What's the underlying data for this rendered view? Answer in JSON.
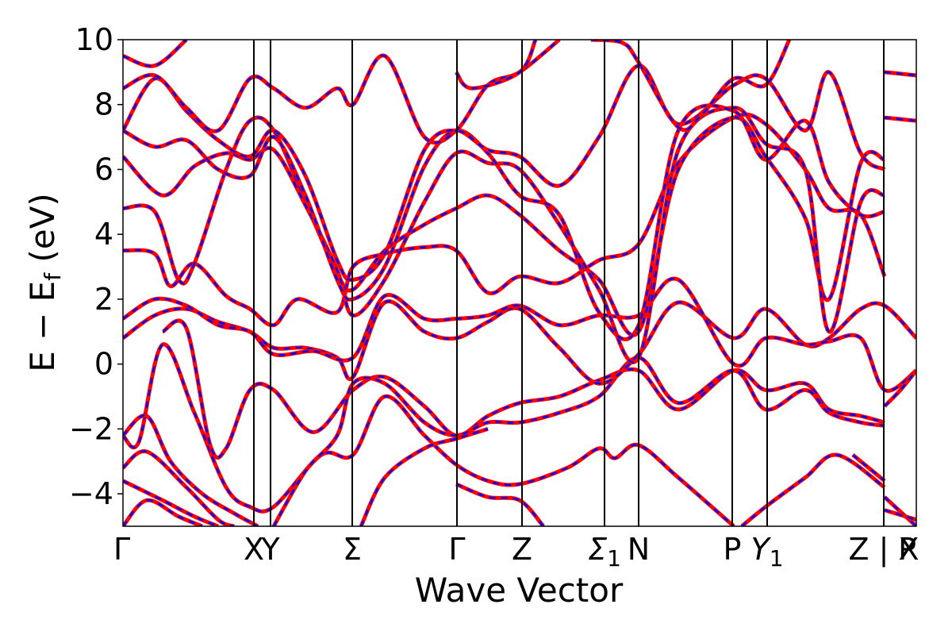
{
  "chart_data": {
    "type": "line",
    "title": "",
    "xlabel": "Wave Vector",
    "ylabel": "E − E",
    "ylabel_sub": "f",
    "ylabel_unit": " (eV)",
    "ylim": [
      -5,
      10
    ],
    "yticks": [
      -4,
      -2,
      0,
      2,
      4,
      6,
      8,
      10
    ],
    "ytick_labels": [
      "−4",
      "−2",
      "0",
      "2",
      "4",
      "6",
      "8",
      "10"
    ],
    "xlim": [
      0,
      1
    ],
    "kpoints": [
      {
        "label": "Γ",
        "sub": "",
        "x": 0.0,
        "line": false
      },
      {
        "label": "X",
        "sub": "",
        "x": 0.165,
        "line": true
      },
      {
        "label": "Y",
        "sub": "",
        "x": 0.186,
        "line": true
      },
      {
        "label": "Σ",
        "sub": "",
        "x": 0.289,
        "line": true
      },
      {
        "label": "Γ",
        "sub": "",
        "x": 0.421,
        "line": true
      },
      {
        "label": "Z",
        "sub": "",
        "x": 0.503,
        "line": true
      },
      {
        "label": "Σ",
        "sub": "1",
        "x": 0.607,
        "line": true
      },
      {
        "label": "N",
        "sub": "",
        "x": 0.65,
        "line": true
      },
      {
        "label": "P",
        "sub": "",
        "x": 0.768,
        "line": true
      },
      {
        "label": "Y",
        "sub": "1",
        "x": 0.812,
        "line": true
      },
      {
        "label": "Z | X",
        "sub": "",
        "x": 0.959,
        "line": true
      },
      {
        "label": "P",
        "sub": "",
        "x": 1.0,
        "line": false
      }
    ],
    "series": [
      {
        "color": "#ff0000",
        "style": "solid"
      },
      {
        "color": "#0000ff",
        "style": "dashed"
      }
    ],
    "bands": [
      [
        [
          0.0,
          -5.0
        ],
        [
          0.03,
          -4.2
        ],
        [
          0.07,
          -4.7
        ],
        [
          0.1,
          -5.0
        ]
      ],
      [
        [
          0.0,
          -3.6
        ],
        [
          0.05,
          -4.2
        ],
        [
          0.09,
          -4.7
        ],
        [
          0.12,
          -5.0
        ]
      ],
      [
        [
          0.0,
          -3.2
        ],
        [
          0.03,
          -2.7
        ],
        [
          0.08,
          -3.8
        ],
        [
          0.12,
          -4.8
        ],
        [
          0.14,
          -5.0
        ]
      ],
      [
        [
          0.0,
          -2.2
        ],
        [
          0.02,
          -2.4
        ],
        [
          0.05,
          0.6
        ],
        [
          0.09,
          -1.5
        ],
        [
          0.13,
          -3.8
        ],
        [
          0.16,
          -4.4
        ],
        [
          0.19,
          -4.4
        ],
        [
          0.25,
          -2.8
        ],
        [
          0.29,
          -2.8
        ],
        [
          0.33,
          -1.0
        ],
        [
          0.38,
          -2.2
        ],
        [
          0.42,
          -3.1
        ],
        [
          0.46,
          -3.6
        ],
        [
          0.5,
          -3.7
        ],
        [
          0.56,
          -3.2
        ],
        [
          0.6,
          -2.6
        ],
        [
          0.62,
          -2.9
        ],
        [
          0.65,
          -2.5
        ],
        [
          0.7,
          -3.5
        ],
        [
          0.77,
          -5.0
        ]
      ],
      [
        [
          0.0,
          -2.2
        ],
        [
          0.03,
          -1.6
        ],
        [
          0.06,
          -3.0
        ],
        [
          0.1,
          -4.0
        ],
        [
          0.14,
          -4.6
        ],
        [
          0.17,
          -5.0
        ]
      ],
      [
        [
          0.05,
          1.0
        ],
        [
          0.08,
          1.1
        ],
        [
          0.11,
          -2.5
        ],
        [
          0.13,
          -2.6
        ],
        [
          0.16,
          -0.8
        ],
        [
          0.19,
          -0.8
        ],
        [
          0.24,
          -2.1
        ],
        [
          0.29,
          -0.8
        ],
        [
          0.33,
          -0.4
        ],
        [
          0.38,
          -1.3
        ],
        [
          0.42,
          -2.2
        ],
        [
          0.46,
          -1.6
        ],
        [
          0.5,
          -1.2
        ],
        [
          0.55,
          -1.0
        ],
        [
          0.6,
          -0.5
        ],
        [
          0.65,
          -0.2
        ],
        [
          0.7,
          -1.4
        ],
        [
          0.77,
          -0.2
        ],
        [
          0.81,
          -0.8
        ],
        [
          0.86,
          -0.6
        ],
        [
          0.89,
          -1.4
        ],
        [
          0.93,
          -1.6
        ],
        [
          0.96,
          -1.8
        ]
      ],
      [
        [
          0.19,
          -5.0
        ],
        [
          0.23,
          -3.3
        ],
        [
          0.27,
          -2.2
        ],
        [
          0.29,
          -0.6
        ],
        [
          0.33,
          -0.6
        ],
        [
          0.38,
          -1.8
        ],
        [
          0.42,
          -2.2
        ],
        [
          0.46,
          -1.8
        ],
        [
          0.5,
          -1.8
        ],
        [
          0.55,
          -1.5
        ],
        [
          0.6,
          -1.0
        ],
        [
          0.65,
          0.2
        ],
        [
          0.7,
          -1.2
        ],
        [
          0.77,
          -0.2
        ],
        [
          0.81,
          -1.4
        ],
        [
          0.86,
          -0.8
        ],
        [
          0.89,
          -1.5
        ],
        [
          0.93,
          -1.8
        ],
        [
          0.96,
          -1.9
        ]
      ],
      [
        [
          0.0,
          0.8
        ],
        [
          0.04,
          1.5
        ],
        [
          0.08,
          1.7
        ],
        [
          0.12,
          1.3
        ],
        [
          0.16,
          1.0
        ],
        [
          0.19,
          0.5
        ],
        [
          0.23,
          0.5
        ],
        [
          0.27,
          0.2
        ],
        [
          0.29,
          -0.4
        ],
        [
          0.33,
          1.9
        ],
        [
          0.38,
          1.0
        ],
        [
          0.42,
          0.8
        ],
        [
          0.46,
          1.3
        ],
        [
          0.5,
          1.7
        ],
        [
          0.55,
          0.5
        ],
        [
          0.6,
          -0.6
        ],
        [
          0.65,
          0.3
        ],
        [
          0.7,
          1.9
        ],
        [
          0.77,
          0.8
        ],
        [
          0.81,
          1.7
        ],
        [
          0.86,
          0.6
        ],
        [
          0.89,
          0.8
        ],
        [
          0.93,
          1.7
        ],
        [
          0.96,
          1.8
        ],
        [
          1.0,
          0.8
        ]
      ],
      [
        [
          0.0,
          1.4
        ],
        [
          0.04,
          2.0
        ],
        [
          0.08,
          1.8
        ],
        [
          0.12,
          1.2
        ],
        [
          0.16,
          1.0
        ],
        [
          0.19,
          0.3
        ],
        [
          0.24,
          0.4
        ],
        [
          0.29,
          0.2
        ],
        [
          0.33,
          2.1
        ],
        [
          0.38,
          1.4
        ],
        [
          0.42,
          1.4
        ],
        [
          0.46,
          1.5
        ],
        [
          0.5,
          1.8
        ],
        [
          0.55,
          1.2
        ],
        [
          0.6,
          1.5
        ],
        [
          0.65,
          1.5
        ],
        [
          0.7,
          2.6
        ],
        [
          0.77,
          0.0
        ],
        [
          0.81,
          0.8
        ],
        [
          0.86,
          0.6
        ],
        [
          0.89,
          0.7
        ],
        [
          0.93,
          0.8
        ],
        [
          0.96,
          -0.8
        ],
        [
          1.0,
          -0.2
        ]
      ],
      [
        [
          0.0,
          3.5
        ],
        [
          0.04,
          3.4
        ],
        [
          0.06,
          2.4
        ],
        [
          0.09,
          3.1
        ],
        [
          0.13,
          2.1
        ],
        [
          0.16,
          1.7
        ],
        [
          0.19,
          1.2
        ],
        [
          0.22,
          2.0
        ],
        [
          0.27,
          1.6
        ],
        [
          0.29,
          3.0
        ],
        [
          0.33,
          3.4
        ],
        [
          0.38,
          3.6
        ],
        [
          0.42,
          3.5
        ],
        [
          0.46,
          2.2
        ],
        [
          0.5,
          2.7
        ],
        [
          0.55,
          2.5
        ],
        [
          0.6,
          3.2
        ],
        [
          0.65,
          3.7
        ],
        [
          0.7,
          6.2
        ],
        [
          0.77,
          7.6
        ],
        [
          0.81,
          7.4
        ],
        [
          0.86,
          6.0
        ],
        [
          0.89,
          4.8
        ],
        [
          0.93,
          4.6
        ],
        [
          0.96,
          2.7
        ]
      ],
      [
        [
          0.0,
          4.8
        ],
        [
          0.04,
          4.7
        ],
        [
          0.07,
          2.6
        ],
        [
          0.09,
          3.1
        ],
        [
          0.13,
          6.0
        ],
        [
          0.16,
          7.5
        ],
        [
          0.19,
          7.2
        ],
        [
          0.23,
          5.0
        ],
        [
          0.27,
          2.8
        ],
        [
          0.29,
          2.3
        ],
        [
          0.33,
          3.5
        ],
        [
          0.38,
          4.3
        ],
        [
          0.42,
          4.8
        ],
        [
          0.46,
          5.2
        ],
        [
          0.5,
          4.6
        ],
        [
          0.55,
          3.5
        ],
        [
          0.6,
          2.6
        ],
        [
          0.65,
          1.0
        ],
        [
          0.7,
          6.0
        ],
        [
          0.77,
          7.6
        ],
        [
          0.81,
          6.4
        ],
        [
          0.86,
          4.5
        ],
        [
          0.89,
          2.0
        ],
        [
          0.93,
          6.2
        ],
        [
          0.96,
          6.3
        ]
      ],
      [
        [
          0.0,
          6.4
        ],
        [
          0.05,
          5.2
        ],
        [
          0.09,
          6.1
        ],
        [
          0.13,
          6.5
        ],
        [
          0.16,
          6.3
        ],
        [
          0.19,
          6.6
        ],
        [
          0.23,
          4.9
        ],
        [
          0.27,
          2.9
        ],
        [
          0.29,
          1.5
        ],
        [
          0.33,
          2.6
        ],
        [
          0.38,
          5.0
        ],
        [
          0.42,
          6.5
        ],
        [
          0.46,
          6.2
        ],
        [
          0.5,
          6.0
        ],
        [
          0.55,
          4.3
        ],
        [
          0.6,
          2.3
        ],
        [
          0.65,
          0.2
        ],
        [
          0.7,
          6.6
        ],
        [
          0.77,
          7.9
        ],
        [
          0.81,
          6.8
        ],
        [
          0.86,
          6.0
        ],
        [
          0.89,
          1.0
        ],
        [
          0.93,
          5.0
        ],
        [
          0.96,
          5.2
        ]
      ],
      [
        [
          0.0,
          7.2
        ],
        [
          0.04,
          6.7
        ],
        [
          0.08,
          6.9
        ],
        [
          0.12,
          6.0
        ],
        [
          0.16,
          5.8
        ],
        [
          0.19,
          7.0
        ],
        [
          0.23,
          5.2
        ],
        [
          0.27,
          2.6
        ],
        [
          0.29,
          2.0
        ],
        [
          0.33,
          3.0
        ],
        [
          0.38,
          6.1
        ],
        [
          0.42,
          7.2
        ],
        [
          0.46,
          6.5
        ],
        [
          0.5,
          5.2
        ],
        [
          0.55,
          4.6
        ],
        [
          0.6,
          1.6
        ],
        [
          0.65,
          1.2
        ],
        [
          0.7,
          7.2
        ],
        [
          0.77,
          7.8
        ],
        [
          0.81,
          6.3
        ],
        [
          0.86,
          7.5
        ],
        [
          0.89,
          5.6
        ],
        [
          0.93,
          4.6
        ],
        [
          0.96,
          4.7
        ]
      ],
      [
        [
          0.0,
          7.2
        ],
        [
          0.04,
          8.8
        ],
        [
          0.08,
          7.8
        ],
        [
          0.12,
          6.9
        ],
        [
          0.16,
          6.4
        ],
        [
          0.19,
          7.2
        ],
        [
          0.23,
          5.8
        ],
        [
          0.27,
          3.2
        ],
        [
          0.29,
          2.6
        ],
        [
          0.33,
          3.4
        ],
        [
          0.38,
          6.6
        ],
        [
          0.42,
          7.2
        ],
        [
          0.46,
          6.6
        ],
        [
          0.5,
          6.4
        ],
        [
          0.55,
          5.5
        ],
        [
          0.6,
          7.0
        ],
        [
          0.65,
          9.2
        ],
        [
          0.7,
          7.4
        ],
        [
          0.77,
          8.6
        ],
        [
          0.81,
          8.8
        ],
        [
          0.86,
          7.2
        ],
        [
          0.89,
          9.0
        ],
        [
          0.93,
          6.5
        ],
        [
          0.96,
          6.0
        ]
      ],
      [
        [
          0.0,
          8.5
        ],
        [
          0.04,
          8.9
        ],
        [
          0.08,
          7.9
        ],
        [
          0.12,
          7.2
        ],
        [
          0.16,
          8.8
        ],
        [
          0.19,
          8.5
        ],
        [
          0.23,
          7.9
        ],
        [
          0.27,
          8.5
        ],
        [
          0.29,
          8.0
        ],
        [
          0.33,
          9.5
        ],
        [
          0.38,
          7.0
        ],
        [
          0.42,
          7.2
        ],
        [
          0.46,
          8.6
        ],
        [
          0.5,
          9.0
        ],
        [
          0.55,
          10.0
        ]
      ],
      [
        [
          0.0,
          9.5
        ],
        [
          0.04,
          9.2
        ],
        [
          0.08,
          10.0
        ]
      ],
      [
        [
          0.59,
          10.0
        ],
        [
          0.63,
          9.9
        ],
        [
          0.65,
          9.3
        ],
        [
          0.7,
          7.3
        ],
        [
          0.73,
          7.7
        ],
        [
          0.77,
          8.8
        ],
        [
          0.81,
          8.6
        ],
        [
          0.84,
          10.0
        ]
      ],
      [
        [
          0.42,
          9.0
        ],
        [
          0.44,
          8.5
        ],
        [
          0.5,
          9.0
        ],
        [
          0.52,
          10.0
        ]
      ],
      [
        [
          0.96,
          9.0
        ],
        [
          1.0,
          8.9
        ]
      ],
      [
        [
          0.96,
          7.6
        ],
        [
          1.0,
          7.5
        ]
      ],
      [
        [
          0.96,
          -4.1
        ],
        [
          1.0,
          -5.0
        ]
      ],
      [
        [
          0.96,
          -4.5
        ],
        [
          1.0,
          -4.8
        ]
      ],
      [
        [
          0.96,
          -1.3
        ],
        [
          0.98,
          -0.8
        ],
        [
          1.0,
          -0.2
        ]
      ],
      [
        [
          0.92,
          -2.8
        ],
        [
          0.96,
          -3.6
        ]
      ],
      [
        [
          0.42,
          -3.7
        ],
        [
          0.46,
          -4.1
        ],
        [
          0.5,
          -4.2
        ],
        [
          0.53,
          -5.0
        ]
      ],
      [
        [
          0.78,
          -5.0
        ],
        [
          0.81,
          -4.4
        ],
        [
          0.86,
          -3.5
        ],
        [
          0.9,
          -2.8
        ],
        [
          0.96,
          -3.8
        ]
      ],
      [
        [
          0.3,
          -5.0
        ],
        [
          0.33,
          -3.5
        ],
        [
          0.38,
          -2.6
        ],
        [
          0.42,
          -2.3
        ],
        [
          0.46,
          -2.0
        ]
      ]
    ]
  }
}
